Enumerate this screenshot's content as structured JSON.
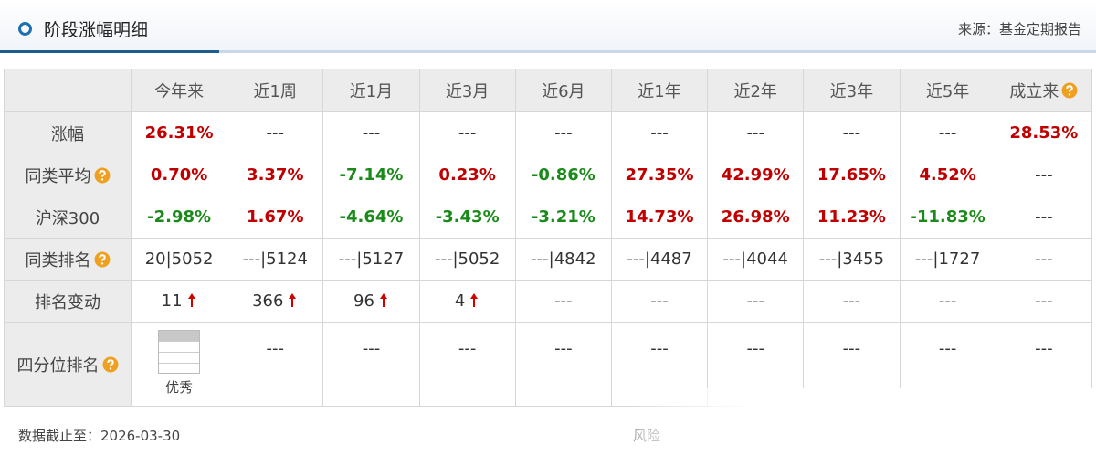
{
  "header": {
    "title": "阶段涨幅明细",
    "source": "来源：基金定期报告"
  },
  "table": {
    "columns": [
      "今年来",
      "近1周",
      "近1月",
      "近3月",
      "近6月",
      "近1年",
      "近2年",
      "近3年",
      "近5年",
      "成立来"
    ],
    "column_help": [
      false,
      false,
      false,
      false,
      false,
      false,
      false,
      false,
      false,
      true
    ],
    "rows": [
      {
        "label": "涨幅",
        "help": false,
        "cells": [
          "26.31%",
          "---",
          "---",
          "---",
          "---",
          "---",
          "---",
          "---",
          "---",
          "28.53%"
        ]
      },
      {
        "label": "同类平均",
        "help": true,
        "cells": [
          "0.70%",
          "3.37%",
          "-7.14%",
          "0.23%",
          "-0.86%",
          "27.35%",
          "42.99%",
          "17.65%",
          "4.52%",
          "---"
        ]
      },
      {
        "label": "沪深300",
        "help": false,
        "cells": [
          "-2.98%",
          "1.67%",
          "-4.64%",
          "-3.43%",
          "-3.21%",
          "14.73%",
          "26.98%",
          "11.23%",
          "-11.83%",
          "---"
        ]
      },
      {
        "label": "同类排名",
        "help": true,
        "cells": [
          "20|5052",
          "---|5124",
          "---|5127",
          "---|5052",
          "---|4842",
          "---|4487",
          "---|4044",
          "---|3455",
          "---|1727",
          "---"
        ]
      },
      {
        "label": "排名变动",
        "help": false,
        "cells": [
          "11",
          "366",
          "96",
          "4",
          "---",
          "---",
          "---",
          "---",
          "---",
          "---"
        ],
        "arrows": [
          true,
          true,
          true,
          true,
          false,
          false,
          false,
          false,
          false,
          false
        ]
      },
      {
        "label": "四分位排名",
        "help": true,
        "quartile": true,
        "cells": [
          "优秀",
          "---",
          "---",
          "---",
          "---",
          "---",
          "---",
          "---",
          "---",
          "---"
        ]
      }
    ]
  },
  "footer": {
    "date": "数据截止至：2026-03-30",
    "note": "风险"
  }
}
